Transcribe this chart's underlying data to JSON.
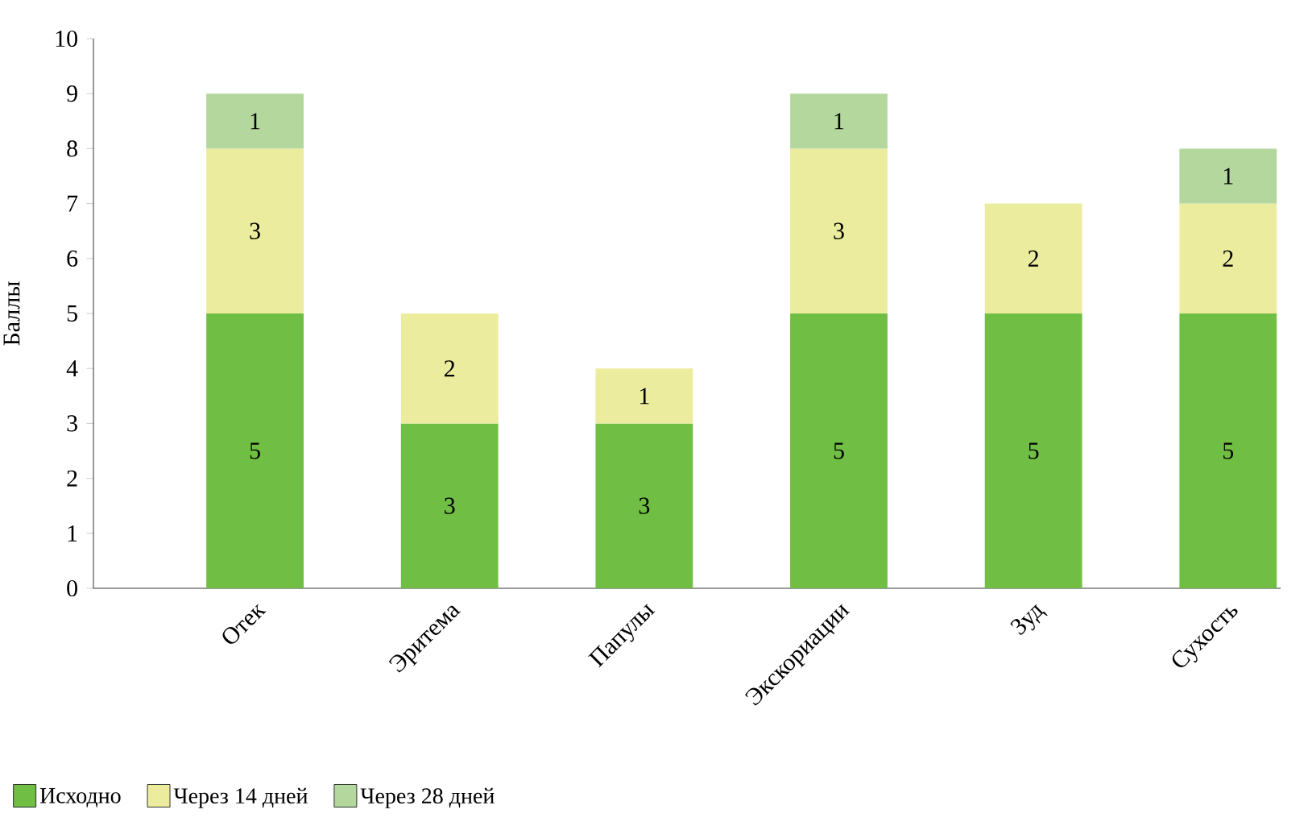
{
  "chart_data": {
    "type": "bar",
    "stacked": true,
    "ylabel": "Баллы",
    "categories": [
      "Отек",
      "Эритема",
      "Папулы",
      "Экскориации",
      "Зуд",
      "Сухость"
    ],
    "series": [
      {
        "name": "Исходно",
        "color": "#70bf44",
        "values": [
          5,
          3,
          3,
          5,
          5,
          5
        ]
      },
      {
        "name": "Через 14 дней",
        "color": "#ecec9f",
        "values": [
          3,
          2,
          1,
          3,
          2,
          2
        ]
      },
      {
        "name": "Через 28 дней",
        "color": "#b4d79e",
        "values": [
          1,
          null,
          null,
          1,
          null,
          1
        ]
      }
    ],
    "ylim": [
      0,
      10
    ],
    "yticks": [
      0,
      1,
      2,
      3,
      4,
      5,
      6,
      7,
      8,
      9,
      10
    ],
    "data_labels": true,
    "legend": "bottom left",
    "grid": false
  }
}
